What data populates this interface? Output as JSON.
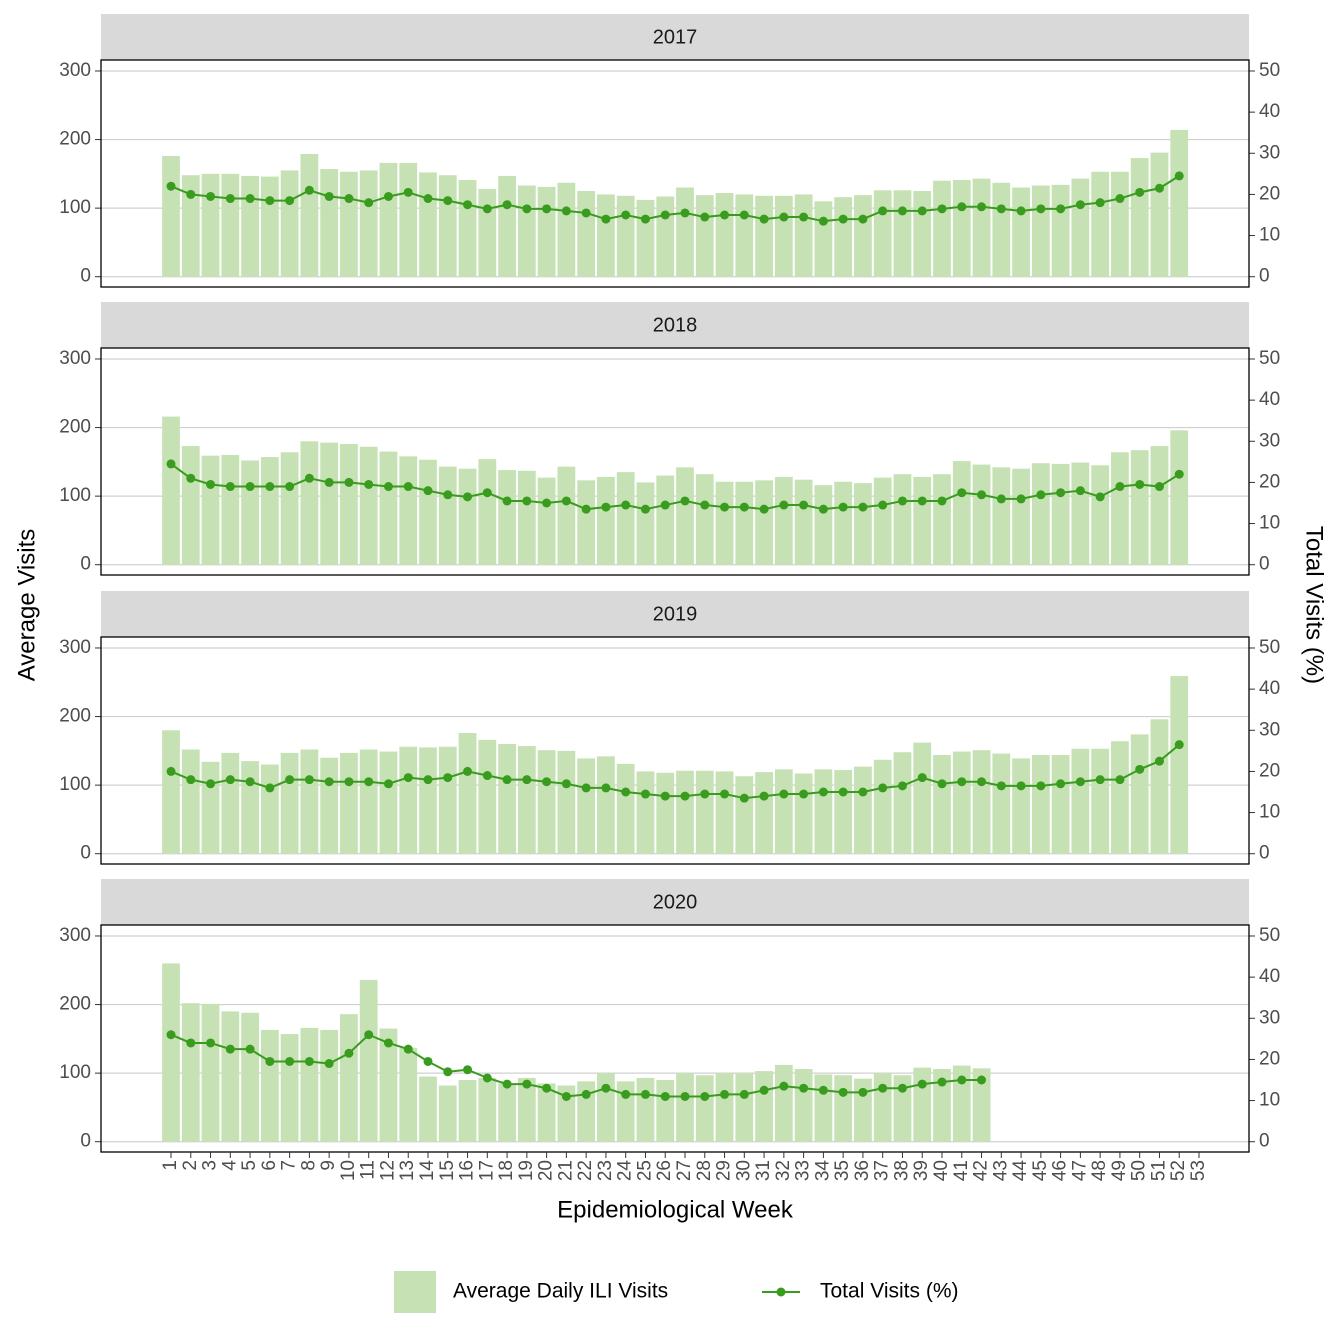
{
  "chart_data": [
    {
      "type": "combo",
      "title": "2017",
      "ylabel": "Average Visits",
      "y2label": "Total Visits (%)",
      "categories": [
        "1",
        "2",
        "3",
        "4",
        "5",
        "6",
        "7",
        "8",
        "9",
        "10",
        "11",
        "12",
        "13",
        "14",
        "15",
        "16",
        "17",
        "18",
        "19",
        "20",
        "21",
        "22",
        "23",
        "24",
        "25",
        "26",
        "27",
        "28",
        "29",
        "30",
        "31",
        "32",
        "33",
        "34",
        "35",
        "36",
        "37",
        "38",
        "39",
        "40",
        "41",
        "42",
        "43",
        "44",
        "45",
        "46",
        "47",
        "48",
        "49",
        "50",
        "51",
        "52",
        "53"
      ],
      "series": [
        {
          "name": "Average Daily ILI Visits",
          "type": "bar",
          "color": "#c6e2b5",
          "values": [
            176,
            148,
            150,
            150,
            147,
            146,
            155,
            179,
            157,
            153,
            155,
            166,
            166,
            152,
            148,
            141,
            128,
            147,
            133,
            131,
            137,
            125,
            120,
            118,
            112,
            117,
            130,
            119,
            122,
            120,
            118,
            118,
            120,
            110,
            116,
            119,
            126,
            126,
            125,
            140,
            141,
            143,
            137,
            130,
            133,
            134,
            143,
            153,
            153,
            173,
            181,
            214,
            null
          ]
        },
        {
          "name": "Total Visits (%)",
          "type": "line",
          "axis": "y2",
          "color": "#3a9c1e",
          "values": [
            22,
            20,
            19.5,
            19,
            19,
            18.5,
            18.5,
            21,
            19.5,
            19,
            18,
            19.5,
            20.5,
            19,
            18.5,
            17.5,
            16.5,
            17.5,
            16.5,
            16.5,
            16,
            15.5,
            14,
            15,
            14,
            15,
            15.5,
            14.5,
            15,
            15,
            14,
            14.5,
            14.5,
            13.5,
            14,
            14,
            16,
            16,
            16,
            16.5,
            17,
            17,
            16.5,
            16,
            16.5,
            16.5,
            17.5,
            18,
            19,
            20.5,
            21.5,
            24.5,
            null
          ]
        }
      ],
      "ylim": [
        -15,
        316
      ],
      "yticks": [
        0,
        100,
        200,
        300
      ],
      "y2lim": [
        -2.5,
        52.67
      ],
      "y2ticks": [
        0,
        10,
        20,
        30,
        40,
        50
      ],
      "grid": true,
      "legend": "bottom"
    },
    {
      "type": "combo",
      "title": "2018",
      "categories": [
        "1",
        "2",
        "3",
        "4",
        "5",
        "6",
        "7",
        "8",
        "9",
        "10",
        "11",
        "12",
        "13",
        "14",
        "15",
        "16",
        "17",
        "18",
        "19",
        "20",
        "21",
        "22",
        "23",
        "24",
        "25",
        "26",
        "27",
        "28",
        "29",
        "30",
        "31",
        "32",
        "33",
        "34",
        "35",
        "36",
        "37",
        "38",
        "39",
        "40",
        "41",
        "42",
        "43",
        "44",
        "45",
        "46",
        "47",
        "48",
        "49",
        "50",
        "51",
        "52",
        "53"
      ],
      "series": [
        {
          "name": "Average Daily ILI Visits",
          "type": "bar",
          "color": "#c6e2b5",
          "values": [
            216,
            173,
            159,
            160,
            152,
            157,
            164,
            180,
            178,
            176,
            172,
            165,
            158,
            153,
            143,
            140,
            154,
            138,
            137,
            127,
            143,
            123,
            128,
            135,
            120,
            130,
            142,
            132,
            121,
            121,
            123,
            128,
            124,
            116,
            121,
            119,
            127,
            132,
            128,
            132,
            151,
            146,
            142,
            140,
            148,
            147,
            149,
            145,
            164,
            167,
            173,
            196,
            null
          ]
        },
        {
          "name": "Total Visits (%)",
          "type": "line",
          "axis": "y2",
          "color": "#3a9c1e",
          "values": [
            24.5,
            21,
            19.5,
            19,
            19,
            19,
            19,
            21,
            20,
            20,
            19.5,
            19,
            19,
            18,
            17,
            16.5,
            17.5,
            15.5,
            15.5,
            15,
            15.5,
            13.5,
            14,
            14.5,
            13.5,
            14.5,
            15.5,
            14.5,
            14,
            14,
            13.5,
            14.5,
            14.5,
            13.5,
            14,
            14,
            14.5,
            15.5,
            15.5,
            15.5,
            17.5,
            17,
            16,
            16,
            17,
            17.5,
            18,
            16.5,
            19,
            19.5,
            19,
            22,
            null
          ]
        }
      ],
      "ylim": [
        -15,
        316
      ],
      "yticks": [
        0,
        100,
        200,
        300
      ],
      "y2lim": [
        -2.5,
        52.67
      ],
      "y2ticks": [
        0,
        10,
        20,
        30,
        40,
        50
      ],
      "grid": true
    },
    {
      "type": "combo",
      "title": "2019",
      "categories": [
        "1",
        "2",
        "3",
        "4",
        "5",
        "6",
        "7",
        "8",
        "9",
        "10",
        "11",
        "12",
        "13",
        "14",
        "15",
        "16",
        "17",
        "18",
        "19",
        "20",
        "21",
        "22",
        "23",
        "24",
        "25",
        "26",
        "27",
        "28",
        "29",
        "30",
        "31",
        "32",
        "33",
        "34",
        "35",
        "36",
        "37",
        "38",
        "39",
        "40",
        "41",
        "42",
        "43",
        "44",
        "45",
        "46",
        "47",
        "48",
        "49",
        "50",
        "51",
        "52",
        "53"
      ],
      "series": [
        {
          "name": "Average Daily ILI Visits",
          "type": "bar",
          "color": "#c6e2b5",
          "values": [
            180,
            152,
            134,
            147,
            135,
            130,
            147,
            152,
            140,
            147,
            152,
            149,
            156,
            155,
            156,
            176,
            166,
            160,
            157,
            151,
            150,
            139,
            142,
            131,
            120,
            118,
            121,
            121,
            120,
            113,
            119,
            123,
            117,
            123,
            122,
            127,
            137,
            148,
            162,
            144,
            149,
            151,
            146,
            139,
            144,
            144,
            153,
            153,
            164,
            174,
            196,
            259,
            null
          ]
        },
        {
          "name": "Total Visits (%)",
          "type": "line",
          "axis": "y2",
          "color": "#3a9c1e",
          "values": [
            20,
            18,
            17,
            18,
            17.5,
            16,
            18,
            18,
            17.5,
            17.5,
            17.5,
            17,
            18.5,
            18,
            18.5,
            20,
            19,
            18,
            18,
            17.5,
            17,
            16,
            16,
            15,
            14.5,
            14,
            14,
            14.5,
            14.5,
            13.5,
            14,
            14.5,
            14.5,
            15,
            15,
            15,
            16,
            16.5,
            18.5,
            17,
            17.5,
            17.5,
            16.5,
            16.5,
            16.5,
            17,
            17.5,
            18,
            18,
            20.5,
            22.5,
            26.5,
            null
          ]
        }
      ],
      "ylim": [
        -15,
        316
      ],
      "yticks": [
        0,
        100,
        200,
        300
      ],
      "y2lim": [
        -2.5,
        52.67
      ],
      "y2ticks": [
        0,
        10,
        20,
        30,
        40,
        50
      ],
      "grid": true
    },
    {
      "type": "combo",
      "title": "2020",
      "xlabel": "Epidemiological Week",
      "categories": [
        "1",
        "2",
        "3",
        "4",
        "5",
        "6",
        "7",
        "8",
        "9",
        "10",
        "11",
        "12",
        "13",
        "14",
        "15",
        "16",
        "17",
        "18",
        "19",
        "20",
        "21",
        "22",
        "23",
        "24",
        "25",
        "26",
        "27",
        "28",
        "29",
        "30",
        "31",
        "32",
        "33",
        "34",
        "35",
        "36",
        "37",
        "38",
        "39",
        "40",
        "41",
        "42",
        "43",
        "44",
        "45",
        "46",
        "47",
        "48",
        "49",
        "50",
        "51",
        "52",
        "53"
      ],
      "series": [
        {
          "name": "Average Daily ILI Visits",
          "type": "bar",
          "color": "#c6e2b5",
          "values": [
            260,
            202,
            201,
            190,
            188,
            163,
            157,
            166,
            163,
            186,
            236,
            165,
            137,
            95,
            82,
            90,
            93,
            85,
            93,
            85,
            82,
            88,
            100,
            88,
            93,
            90,
            100,
            97,
            100,
            100,
            103,
            112,
            106,
            98,
            97,
            92,
            100,
            97,
            108,
            106,
            111,
            107,
            null,
            null,
            null,
            null,
            null,
            null,
            null,
            null,
            null,
            null,
            null
          ]
        },
        {
          "name": "Total Visits (%)",
          "type": "line",
          "axis": "y2",
          "color": "#3a9c1e",
          "values": [
            26,
            24,
            24,
            22.5,
            22.5,
            19.5,
            19.5,
            19.5,
            19,
            21.5,
            26,
            24,
            22.5,
            19.5,
            17,
            17.5,
            15.5,
            14,
            14,
            13,
            11,
            11.5,
            13,
            11.5,
            11.5,
            11,
            11,
            11,
            11.5,
            11.5,
            12.5,
            13.5,
            13,
            12.5,
            12,
            12,
            13,
            13,
            14,
            14.5,
            15,
            15,
            null,
            null,
            null,
            null,
            null,
            null,
            null,
            null,
            null,
            null,
            null
          ]
        }
      ],
      "ylim": [
        -15,
        316
      ],
      "yticks": [
        0,
        100,
        200,
        300
      ],
      "y2lim": [
        -2.5,
        52.67
      ],
      "y2ticks": [
        0,
        10,
        20,
        30,
        40,
        50
      ],
      "grid": true
    }
  ]
}
